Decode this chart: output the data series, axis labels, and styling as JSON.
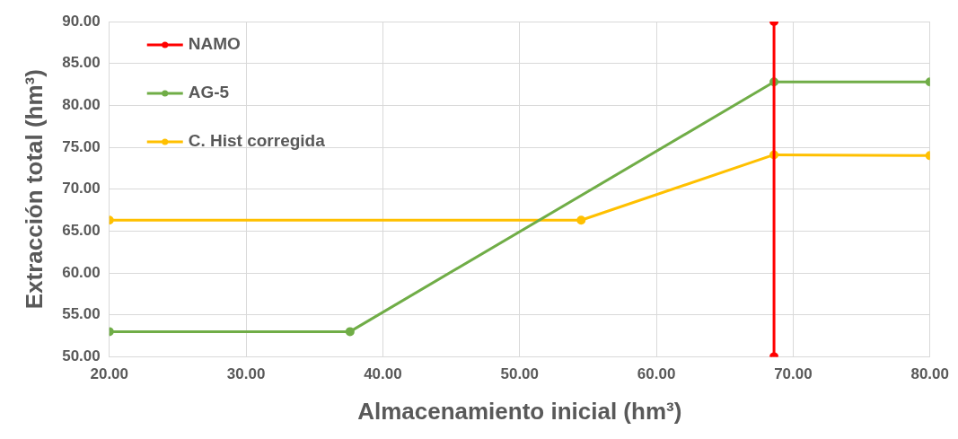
{
  "chart_data": {
    "type": "line",
    "xlabel": "Almacenamiento inicial (hm³)",
    "ylabel": "Extracción total (hm³)",
    "xlim": [
      20,
      80
    ],
    "xticks": [
      {
        "value": 20,
        "label": "20.00"
      },
      {
        "value": 30,
        "label": "30.00"
      },
      {
        "value": 40,
        "label": "40.00"
      },
      {
        "value": 50,
        "label": "50.00"
      },
      {
        "value": 60,
        "label": "60.00"
      },
      {
        "value": 70,
        "label": "70.00"
      },
      {
        "value": 80,
        "label": "80.00"
      }
    ],
    "ylim": [
      50,
      90
    ],
    "yticks": [
      {
        "value": 50,
        "label": "50.00"
      },
      {
        "value": 55,
        "label": "55.00"
      },
      {
        "value": 60,
        "label": "60.00"
      },
      {
        "value": 65,
        "label": "65.00"
      },
      {
        "value": 70,
        "label": "70.00"
      },
      {
        "value": 75,
        "label": "75.00"
      },
      {
        "value": 80,
        "label": "80.00"
      },
      {
        "value": 85,
        "label": "85.00"
      },
      {
        "value": 90,
        "label": "90.00"
      }
    ],
    "grid": true,
    "legend": "top left",
    "marker": "circle",
    "line_style": "solid",
    "series": [
      {
        "name": "NAMO",
        "color": "#ff0000",
        "x": [
          68.6,
          68.6
        ],
        "values": [
          50,
          90
        ]
      },
      {
        "name": "AG-5",
        "color": "#70ad47",
        "x": [
          20,
          37.6,
          68.6,
          80
        ],
        "values": [
          53.0,
          53.0,
          82.8,
          82.8
        ]
      },
      {
        "name": "C. Hist corregida",
        "color": "#ffc000",
        "x": [
          20,
          54.5,
          68.6,
          80
        ],
        "values": [
          66.3,
          66.3,
          74.1,
          74.0
        ]
      }
    ]
  }
}
